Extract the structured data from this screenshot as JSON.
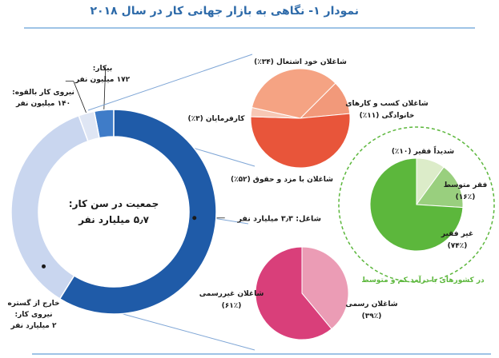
{
  "title": "نمودار ۱- نگاهی به بازار جهانی کار در سال ۲۰۱۸",
  "colors": {
    "title": "#2d6aa9",
    "rule": "#9ec3e6",
    "employed": "#1f5ba8",
    "outside": "#c9d6ef",
    "unemployed": "#3f7cc8",
    "potential": "#dfe6f4",
    "employee": "#e8553a",
    "employer": "#f7c7b4",
    "self_employed": "#f5a383",
    "family": "#f2997a",
    "extreme_poor": "#dcecc9",
    "moderate_poor": "#99cf7e",
    "not_poor": "#5cb73c",
    "green_label": "#5cb73c",
    "informal": "#d93f7a",
    "formal": "#eb9cb5",
    "leader": "#7fa6d6",
    "text": "#1a1a1a"
  },
  "chart_data": [
    {
      "type": "pie",
      "variant": "donut",
      "center_line1": "جمعیت در سن کار:",
      "center_line2": "۵٫۷ میلیارد نفر",
      "slices": [
        {
          "key": "employed",
          "label": "شاغل: ۳٫۳ میلیارد نفر",
          "value": 3.3
        },
        {
          "key": "outside",
          "label_lines": [
            "خارج از گستره",
            "نیروی کار:",
            "۲ میلیارد نفر"
          ],
          "value": 2.0
        },
        {
          "key": "potential",
          "label_lines": [
            "نیروی کار بالقوه:",
            "۱۴۰ میلیون نفر"
          ],
          "value": 0.14
        },
        {
          "key": "unemployed",
          "label_lines": [
            "بیکار:",
            "۱۷۲ میلیون نفر"
          ],
          "value": 0.172
        }
      ]
    },
    {
      "type": "pie",
      "slices": [
        {
          "key": "employee",
          "label": "شاغلان با مزد و حقوق (۵۲٪)",
          "value": 52
        },
        {
          "key": "employer",
          "label": "کارفرمایان (۳٪)",
          "value": 3
        },
        {
          "key": "self_employed",
          "label": "شاغلان خود اشتغال (۳۴٪)",
          "value": 34
        },
        {
          "key": "family",
          "label_lines": [
            "شاغلان کسب و کارهای",
            "خانوادگی (۱۱٪)"
          ],
          "value": 11
        }
      ]
    },
    {
      "type": "pie",
      "caption": "در کشورهای با درآمد کم و متوسط",
      "slices": [
        {
          "key": "extreme_poor",
          "label": "شدیداً فقیر (۱۰٪)",
          "value": 10
        },
        {
          "key": "moderate_poor",
          "label_lines": [
            "فقر متوسط",
            "(۱۶٪)"
          ],
          "value": 16
        },
        {
          "key": "not_poor",
          "label_lines": [
            "غیر فقیر",
            "(۷۴٪)"
          ],
          "value": 74
        }
      ]
    },
    {
      "type": "pie",
      "slices": [
        {
          "key": "formal",
          "label_lines": [
            "شاغلان رسمی",
            "(۳۹٪)"
          ],
          "value": 39
        },
        {
          "key": "informal",
          "label_lines": [
            "شاغلان غیررسمی",
            "(۶۱٪)"
          ],
          "value": 61
        }
      ]
    }
  ]
}
